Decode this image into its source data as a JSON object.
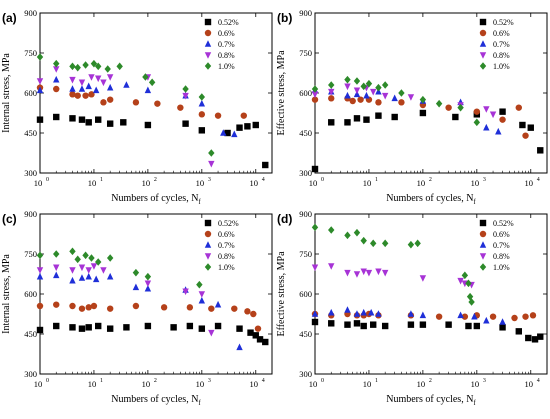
{
  "figure": {
    "background": "#ffffff"
  },
  "series_styles": [
    {
      "name": "0.52%",
      "marker": "square",
      "color": "#000000"
    },
    {
      "name": "0.6%",
      "marker": "circle",
      "color": "#b5411a"
    },
    {
      "name": "0.7%",
      "marker": "triangle-up",
      "color": "#1f2fd8"
    },
    {
      "name": "0.8%",
      "marker": "triangle-down",
      "color": "#a733d6"
    },
    {
      "name": "1.0%",
      "marker": "diamond",
      "color": "#2d8a2a"
    }
  ],
  "chart_data": [
    {
      "panel": "(a)",
      "type": "scatter",
      "xlabel": "Numbers of cycles, N",
      "xlabel_sub": "f",
      "ylabel": "Internal stress, MPa",
      "xscale": "log",
      "xlim": [
        1,
        20000
      ],
      "ylim": [
        300,
        900
      ],
      "xticks": [
        1,
        10,
        100,
        1000,
        10000
      ],
      "xtick_labels": [
        "10",
        "10",
        "10",
        "10",
        "10"
      ],
      "xtick_exps": [
        "0",
        "1",
        "2",
        "3",
        "4"
      ],
      "yticks": [
        300,
        450,
        600,
        750,
        900
      ],
      "ytick_labels": [
        "300",
        "450",
        "600",
        "750",
        "900"
      ],
      "legend": "top-right",
      "series": [
        {
          "name": "0.52%",
          "x": [
            1,
            2,
            4,
            6,
            8,
            12,
            20,
            35,
            100,
            500,
            1000,
            3000,
            5000,
            7000,
            10000,
            15000
          ],
          "y": [
            500,
            510,
            505,
            500,
            490,
            500,
            485,
            490,
            480,
            485,
            460,
            450,
            470,
            475,
            480,
            330
          ]
        },
        {
          "name": "0.6%",
          "x": [
            1,
            2,
            4,
            5,
            7,
            9,
            15,
            20,
            60,
            150,
            400,
            1000,
            2000,
            6000
          ],
          "y": [
            620,
            615,
            595,
            590,
            590,
            595,
            565,
            575,
            565,
            560,
            545,
            520,
            515,
            515
          ]
        },
        {
          "name": "0.7%",
          "x": [
            1,
            2,
            4,
            6,
            8,
            11,
            20,
            40,
            100,
            500,
            1000,
            2500,
            4000
          ],
          "y": [
            610,
            650,
            615,
            615,
            625,
            610,
            620,
            630,
            610,
            590,
            560,
            450,
            445
          ]
        },
        {
          "name": "0.8%",
          "x": [
            1,
            2,
            4,
            6,
            9,
            12,
            15,
            20,
            100,
            500,
            1500
          ],
          "y": [
            645,
            690,
            650,
            640,
            660,
            655,
            640,
            660,
            660,
            590,
            335
          ]
        },
        {
          "name": "1.0%",
          "x": [
            1,
            2,
            4,
            5,
            7,
            10,
            12,
            18,
            30,
            90,
            120,
            500,
            1000,
            1500
          ],
          "y": [
            735,
            710,
            700,
            695,
            705,
            710,
            700,
            690,
            700,
            660,
            640,
            615,
            585,
            375
          ]
        }
      ]
    },
    {
      "panel": "(b)",
      "type": "scatter",
      "xlabel": "Numbers of cycles, N",
      "xlabel_sub": "f",
      "ylabel": "Effective stress, MPa",
      "xscale": "log",
      "xlim": [
        1,
        20000
      ],
      "ylim": [
        300,
        900
      ],
      "xticks": [
        1,
        10,
        100,
        1000,
        10000
      ],
      "xtick_labels": [
        "10",
        "10",
        "10",
        "10",
        "10"
      ],
      "xtick_exps": [
        "0",
        "1",
        "2",
        "3",
        "4"
      ],
      "yticks": [
        300,
        450,
        600,
        750,
        900
      ],
      "ytick_labels": [
        "300",
        "450",
        "600",
        "750",
        "900"
      ],
      "legend": "top-right",
      "series": [
        {
          "name": "0.52%",
          "x": [
            1,
            2,
            4,
            6,
            9,
            15,
            30,
            100,
            400,
            1000,
            3000,
            7000,
            10000,
            15000
          ],
          "y": [
            315,
            490,
            490,
            505,
            500,
            515,
            510,
            525,
            510,
            520,
            530,
            480,
            470,
            385
          ]
        },
        {
          "name": "0.6%",
          "x": [
            1,
            2,
            4,
            5,
            7,
            10,
            15,
            40,
            100,
            300,
            1000,
            3000,
            6000,
            8000
          ],
          "y": [
            575,
            580,
            580,
            570,
            575,
            575,
            565,
            565,
            555,
            545,
            530,
            500,
            545,
            440
          ]
        },
        {
          "name": "0.7%",
          "x": [
            1,
            2,
            4,
            6,
            9,
            15,
            30,
            100,
            500,
            1500,
            2500
          ],
          "y": [
            610,
            605,
            590,
            595,
            590,
            605,
            580,
            570,
            565,
            470,
            455
          ]
        },
        {
          "name": "0.8%",
          "x": [
            1,
            2,
            4,
            6,
            9,
            12,
            20,
            60,
            500,
            1500,
            2000
          ],
          "y": [
            595,
            605,
            625,
            610,
            620,
            605,
            590,
            585,
            555,
            540,
            520
          ]
        },
        {
          "name": "1.0%",
          "x": [
            1,
            2,
            4,
            6,
            8,
            10,
            15,
            20,
            40,
            100,
            200,
            500,
            1000
          ],
          "y": [
            615,
            630,
            650,
            645,
            625,
            635,
            620,
            630,
            600,
            575,
            560,
            545,
            490
          ]
        }
      ]
    },
    {
      "panel": "(c)",
      "type": "scatter",
      "xlabel": "Numbers of cycles, N",
      "xlabel_sub": "f",
      "ylabel": "Internal stress, MPa",
      "xscale": "log",
      "xlim": [
        1,
        20000
      ],
      "ylim": [
        300,
        900
      ],
      "xticks": [
        1,
        10,
        100,
        1000,
        10000
      ],
      "xtick_labels": [
        "10",
        "10",
        "10",
        "10",
        "10"
      ],
      "xtick_exps": [
        "0",
        "1",
        "2",
        "3",
        "4"
      ],
      "yticks": [
        300,
        450,
        600,
        750,
        900
      ],
      "ytick_labels": [
        "300",
        "450",
        "600",
        "750",
        "900"
      ],
      "legend": "top-right",
      "series": [
        {
          "name": "0.52%",
          "x": [
            1,
            2,
            4,
            6,
            8,
            12,
            20,
            40,
            100,
            300,
            600,
            1000,
            2000,
            5000,
            8000,
            10000,
            12000,
            15000
          ],
          "y": [
            465,
            480,
            475,
            470,
            475,
            480,
            470,
            475,
            480,
            475,
            480,
            470,
            480,
            470,
            455,
            445,
            430,
            420
          ]
        },
        {
          "name": "0.6%",
          "x": [
            1,
            2,
            4,
            6,
            8,
            10,
            20,
            60,
            200,
            600,
            1500,
            4000,
            7000,
            9000,
            11000
          ],
          "y": [
            555,
            560,
            555,
            545,
            550,
            555,
            545,
            555,
            550,
            550,
            545,
            545,
            535,
            525,
            470
          ]
        },
        {
          "name": "0.7%",
          "x": [
            1,
            2,
            4,
            6,
            8,
            11,
            20,
            60,
            100,
            500,
            1000,
            2000,
            5000
          ],
          "y": [
            665,
            670,
            650,
            660,
            665,
            655,
            665,
            625,
            620,
            615,
            575,
            560,
            400
          ]
        },
        {
          "name": "0.8%",
          "x": [
            1,
            2,
            4,
            6,
            8,
            10,
            15,
            100,
            500,
            1000,
            1500
          ],
          "y": [
            690,
            700,
            690,
            700,
            690,
            705,
            690,
            640,
            610,
            600,
            455
          ]
        },
        {
          "name": "1.0%",
          "x": [
            1,
            2,
            4,
            5,
            7,
            9,
            12,
            20,
            60,
            100,
            900
          ],
          "y": [
            745,
            750,
            760,
            730,
            745,
            735,
            720,
            735,
            680,
            665,
            635
          ]
        }
      ]
    },
    {
      "panel": "(d)",
      "type": "scatter",
      "xlabel": "Numbers of cycles, N",
      "xlabel_sub": "f",
      "ylabel": "Effective stress, MPa",
      "xscale": "log",
      "xlim": [
        1,
        20000
      ],
      "ylim": [
        300,
        900
      ],
      "xticks": [
        1,
        10,
        100,
        1000,
        10000
      ],
      "xtick_labels": [
        "10",
        "10",
        "10",
        "10",
        "10"
      ],
      "xtick_exps": [
        "0",
        "1",
        "2",
        "3",
        "4"
      ],
      "yticks": [
        300,
        450,
        600,
        750,
        900
      ],
      "ytick_labels": [
        "300",
        "450",
        "600",
        "750",
        "900"
      ],
      "legend": "top-right",
      "series": [
        {
          "name": "0.52%",
          "x": [
            1,
            2,
            4,
            6,
            8,
            12,
            20,
            60,
            100,
            300,
            700,
            1000,
            3000,
            6000,
            9000,
            12000,
            15000
          ],
          "y": [
            495,
            490,
            485,
            490,
            480,
            485,
            480,
            485,
            485,
            485,
            480,
            480,
            475,
            460,
            435,
            430,
            440
          ]
        },
        {
          "name": "0.6%",
          "x": [
            1,
            2,
            4,
            6,
            8,
            10,
            15,
            60,
            200,
            600,
            1000,
            2000,
            5000,
            8000,
            11000
          ],
          "y": [
            525,
            520,
            525,
            520,
            520,
            525,
            520,
            520,
            515,
            515,
            520,
            515,
            510,
            515,
            520
          ]
        },
        {
          "name": "0.7%",
          "x": [
            1,
            2,
            4,
            6,
            8,
            11,
            15,
            60,
            100,
            500,
            900,
            1500,
            3000
          ],
          "y": [
            525,
            530,
            540,
            525,
            530,
            530,
            525,
            525,
            520,
            520,
            515,
            500,
            495
          ]
        },
        {
          "name": "0.8%",
          "x": [
            1,
            2,
            4,
            6,
            8,
            10,
            15,
            20,
            100,
            500,
            600,
            800
          ],
          "y": [
            700,
            705,
            680,
            675,
            685,
            680,
            685,
            680,
            660,
            650,
            640,
            635
          ]
        },
        {
          "name": "1.0%",
          "x": [
            1,
            2,
            4,
            6,
            8,
            12,
            20,
            60,
            80,
            600,
            700,
            750,
            800
          ],
          "y": [
            850,
            840,
            820,
            830,
            800,
            790,
            790,
            785,
            790,
            670,
            640,
            590,
            570
          ]
        }
      ]
    }
  ]
}
